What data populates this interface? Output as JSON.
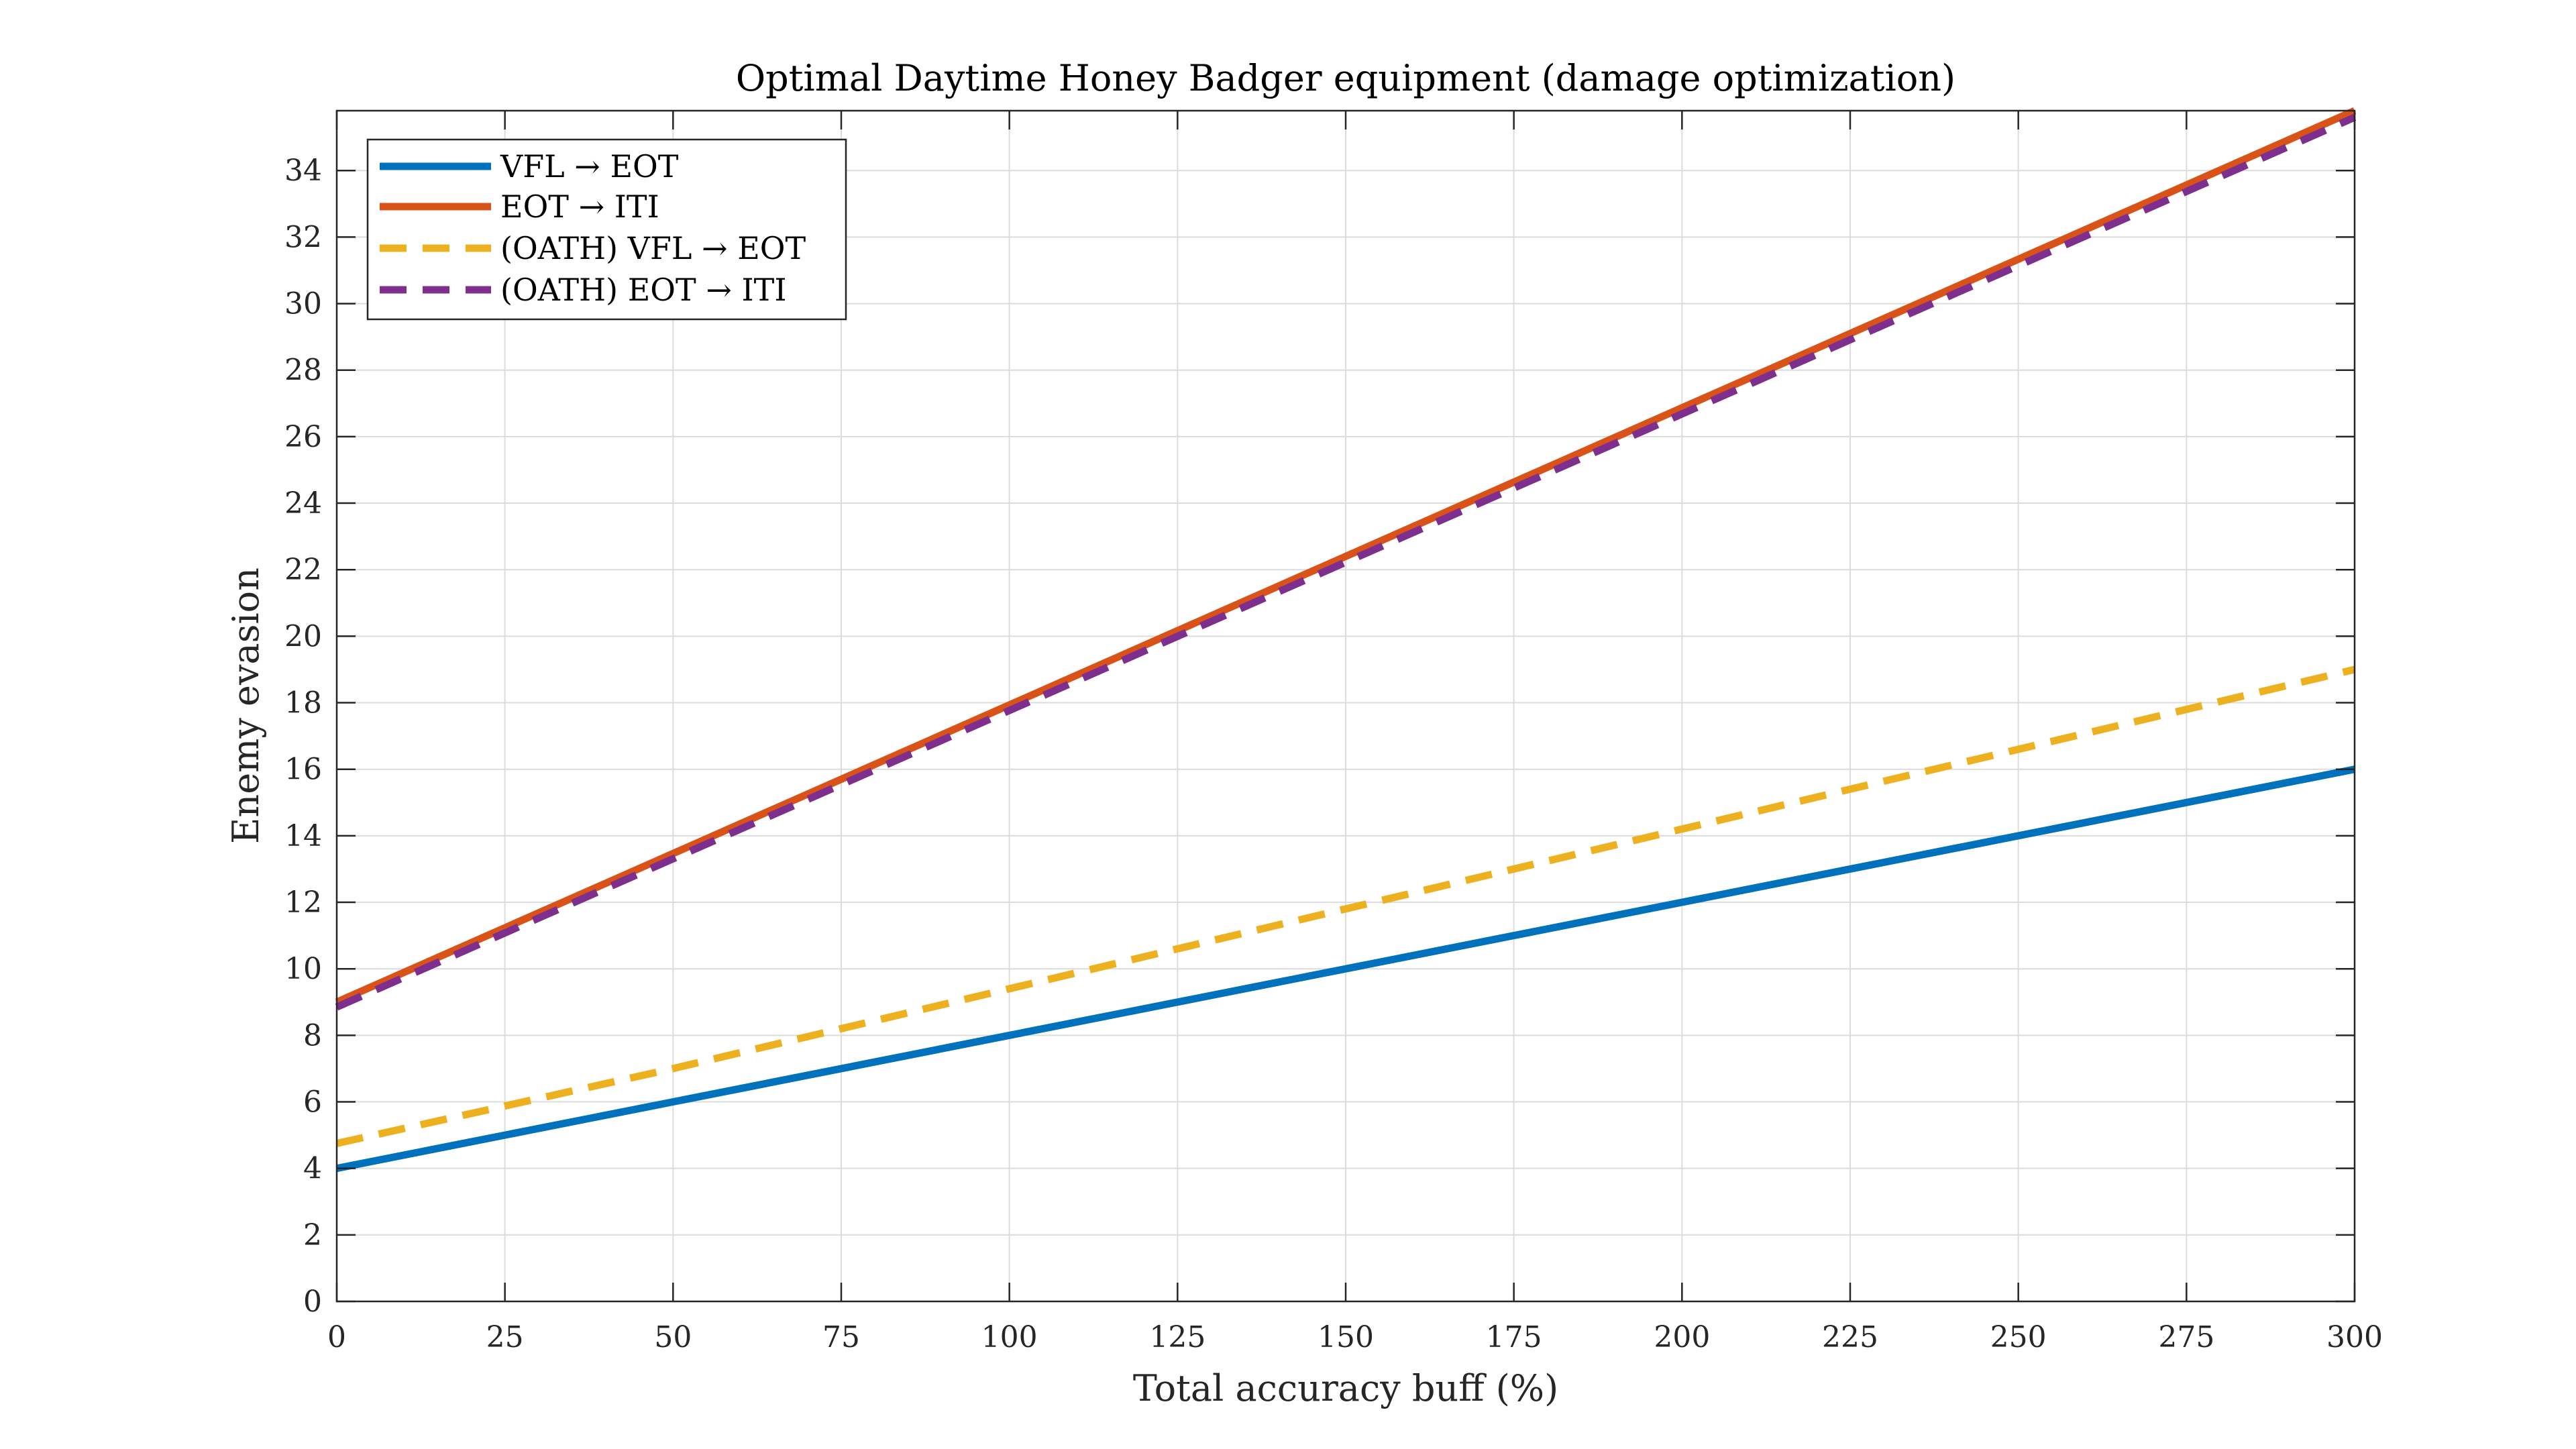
{
  "chart_data": {
    "type": "line",
    "title": "Optimal Daytime Honey Badger equipment (damage optimization)",
    "xlabel": "Total accuracy buff (%)",
    "ylabel": "Enemy evasion",
    "xlim": [
      0,
      300
    ],
    "ylim": [
      0,
      35.8
    ],
    "xticks": [
      0,
      25,
      50,
      75,
      100,
      125,
      150,
      175,
      200,
      225,
      250,
      275,
      300
    ],
    "yticks": [
      0,
      2,
      4,
      6,
      8,
      10,
      12,
      14,
      16,
      18,
      20,
      22,
      24,
      26,
      28,
      30,
      32,
      34
    ],
    "grid": true,
    "legend_position": "top-left",
    "series": [
      {
        "name": "VFL → EOT",
        "x": [
          0,
          300
        ],
        "y": [
          4.0,
          16.0
        ],
        "color": "#0072BD",
        "style": "solid"
      },
      {
        "name": "EOT → ITI",
        "x": [
          0,
          300
        ],
        "y": [
          9.0,
          35.8
        ],
        "color": "#D95319",
        "style": "solid"
      },
      {
        "name": "(OATH) VFL → EOT",
        "x": [
          0,
          50,
          100,
          150,
          200,
          250,
          300
        ],
        "y": [
          4.75,
          7.0,
          9.4,
          11.8,
          14.2,
          16.6,
          19.0
        ],
        "color": "#EDB120",
        "style": "dashed"
      },
      {
        "name": "(OATH) EOT → ITI",
        "x": [
          0,
          300
        ],
        "y": [
          8.85,
          35.6
        ],
        "color": "#7E2F8E",
        "style": "dashed"
      }
    ]
  }
}
